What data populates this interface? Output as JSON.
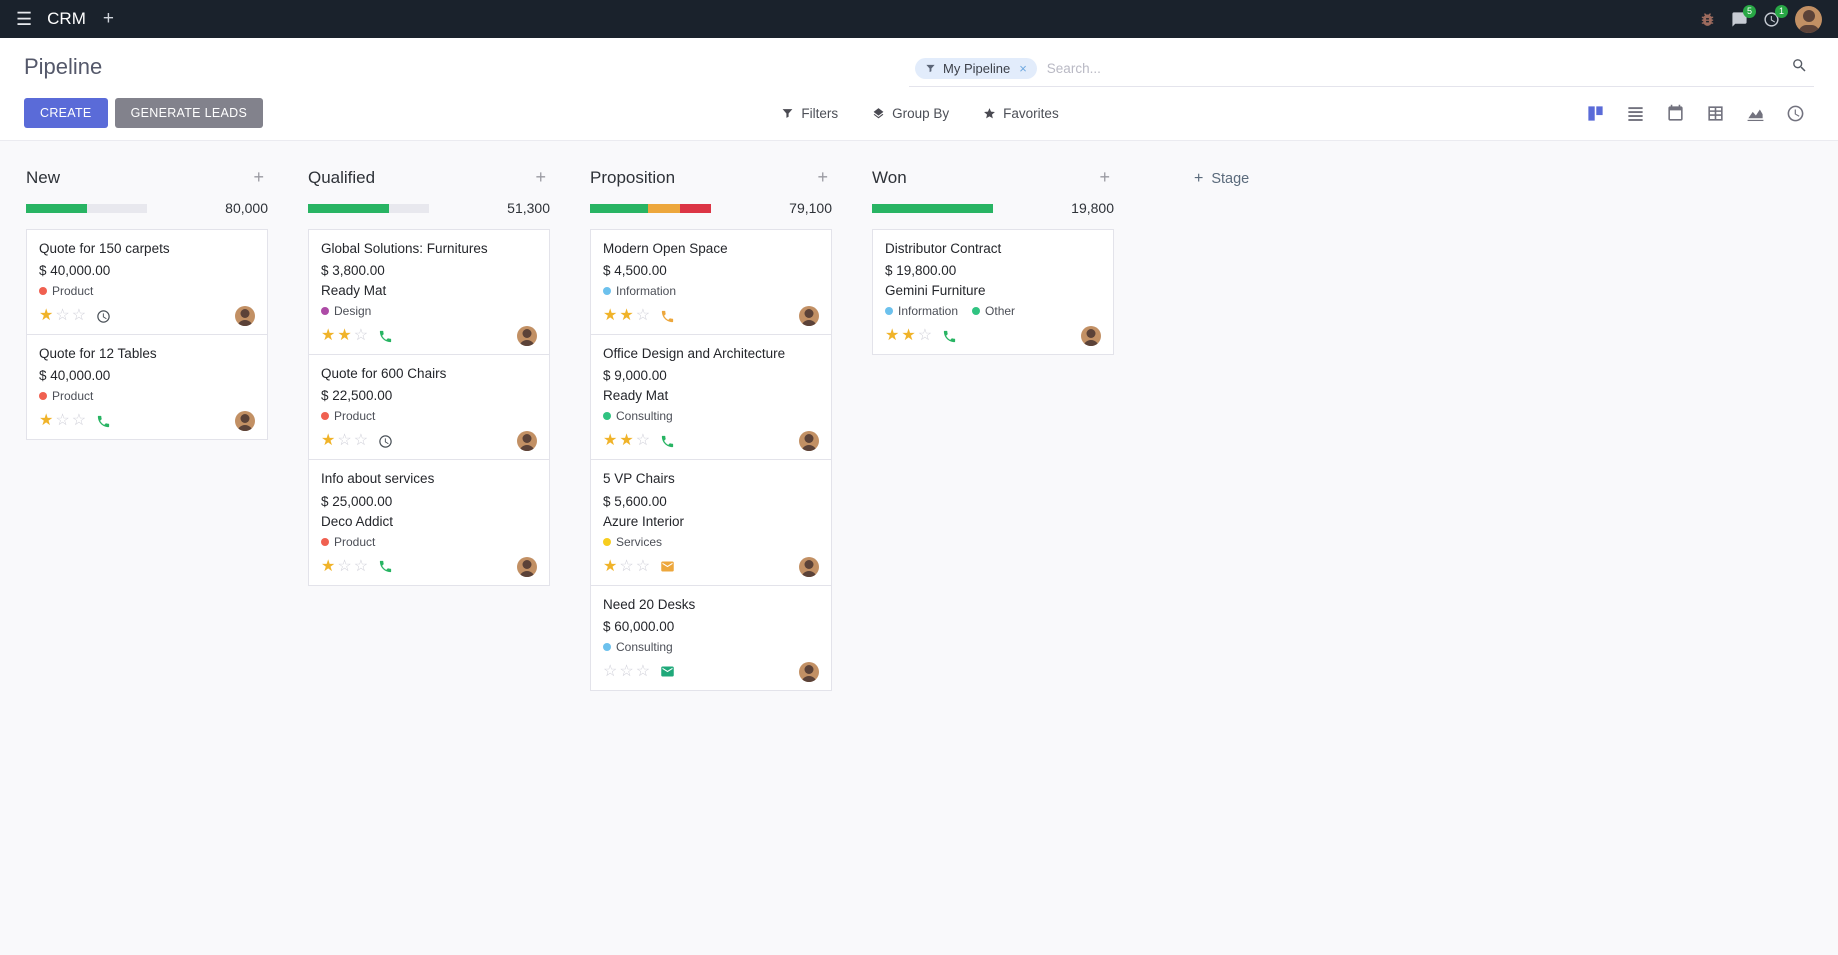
{
  "topbar": {
    "app_name": "CRM",
    "messages_badge": "5",
    "activities_badge": "1"
  },
  "control_panel": {
    "title": "Pipeline",
    "create_label": "CREATE",
    "generate_leads_label": "GENERATE LEADS",
    "filters_label": "Filters",
    "group_by_label": "Group By",
    "favorites_label": "Favorites",
    "search": {
      "facet": "My Pipeline",
      "facet_remove": "×",
      "placeholder": "Search..."
    },
    "view_switcher": {
      "active": "kanban",
      "views": [
        "kanban",
        "list",
        "calendar",
        "pivot",
        "graph",
        "activity"
      ]
    }
  },
  "colors": {
    "accent": "#5a6bd8",
    "success": "#28b463",
    "warning": "#eda73c",
    "danger": "#dc3545",
    "progress_empty": "#e8e8ee"
  },
  "kanban": {
    "add_stage_label": "Stage",
    "columns": [
      {
        "title": "New",
        "total": "80,000",
        "progress": [
          {
            "label": "success",
            "color": "#28b463",
            "pct": 50
          },
          {
            "label": "empty",
            "color": "#e8e8ee",
            "pct": 50
          }
        ],
        "cards": [
          {
            "title": "Quote for 150 carpets",
            "amount": "$ 40,000.00",
            "partner": "",
            "tags": [
              {
                "label": "Product",
                "color": "#f06050"
              }
            ],
            "stars": 1,
            "action": {
              "icon": "clock",
              "color": "#495057"
            }
          },
          {
            "title": "Quote for 12 Tables",
            "amount": "$ 40,000.00",
            "partner": "",
            "tags": [
              {
                "label": "Product",
                "color": "#f06050"
              }
            ],
            "stars": 1,
            "action": {
              "icon": "phone",
              "color": "#28b463"
            }
          }
        ]
      },
      {
        "title": "Qualified",
        "total": "51,300",
        "progress": [
          {
            "label": "success",
            "color": "#28b463",
            "pct": 67
          },
          {
            "label": "empty",
            "color": "#e8e8ee",
            "pct": 33
          }
        ],
        "cards": [
          {
            "title": "Global Solutions: Furnitures",
            "amount": "$ 3,800.00",
            "partner": "Ready Mat",
            "tags": [
              {
                "label": "Design",
                "color": "#ad4ba6"
              }
            ],
            "stars": 2,
            "action": {
              "icon": "phone",
              "color": "#28b463"
            }
          },
          {
            "title": "Quote for 600 Chairs",
            "amount": "$ 22,500.00",
            "partner": "",
            "tags": [
              {
                "label": "Product",
                "color": "#f06050"
              }
            ],
            "stars": 1,
            "action": {
              "icon": "clock",
              "color": "#495057"
            }
          },
          {
            "title": "Info about services",
            "amount": "$ 25,000.00",
            "partner": "Deco Addict",
            "tags": [
              {
                "label": "Product",
                "color": "#f06050"
              }
            ],
            "stars": 1,
            "action": {
              "icon": "phone",
              "color": "#28b463"
            }
          }
        ]
      },
      {
        "title": "Proposition",
        "total": "79,100",
        "progress": [
          {
            "label": "success",
            "color": "#28b463",
            "pct": 48
          },
          {
            "label": "warning",
            "color": "#eda73c",
            "pct": 26
          },
          {
            "label": "danger",
            "color": "#dc3545",
            "pct": 26
          }
        ],
        "cards": [
          {
            "title": "Modern Open Space",
            "amount": "$ 4,500.00",
            "partner": "",
            "tags": [
              {
                "label": "Information",
                "color": "#6cc1ed"
              }
            ],
            "stars": 2,
            "action": {
              "icon": "phone",
              "color": "#eda73c"
            }
          },
          {
            "title": "Office Design and Architecture",
            "amount": "$ 9,000.00",
            "partner": "Ready Mat",
            "tags": [
              {
                "label": "Consulting",
                "color": "#30c381"
              }
            ],
            "stars": 2,
            "action": {
              "icon": "phone",
              "color": "#28b463"
            }
          },
          {
            "title": "5 VP Chairs",
            "amount": "$ 5,600.00",
            "partner": "Azure Interior",
            "tags": [
              {
                "label": "Services",
                "color": "#f7cd1f"
              }
            ],
            "stars": 1,
            "action": {
              "icon": "envelope",
              "color": "#eda73c"
            }
          },
          {
            "title": "Need 20 Desks",
            "amount": "$ 60,000.00",
            "partner": "",
            "tags": [
              {
                "label": "Consulting",
                "color": "#6cc1ed"
              }
            ],
            "stars": 0,
            "action": {
              "icon": "envelope",
              "color": "#1fa97a"
            }
          }
        ]
      },
      {
        "title": "Won",
        "total": "19,800",
        "progress": [
          {
            "label": "success",
            "color": "#28b463",
            "pct": 100
          }
        ],
        "cards": [
          {
            "title": "Distributor Contract",
            "amount": "$ 19,800.00",
            "partner": "Gemini Furniture",
            "tags": [
              {
                "label": "Information",
                "color": "#6cc1ed"
              },
              {
                "label": "Other",
                "color": "#30c381"
              }
            ],
            "stars": 2,
            "action": {
              "icon": "phone",
              "color": "#28b463"
            }
          }
        ]
      }
    ]
  }
}
